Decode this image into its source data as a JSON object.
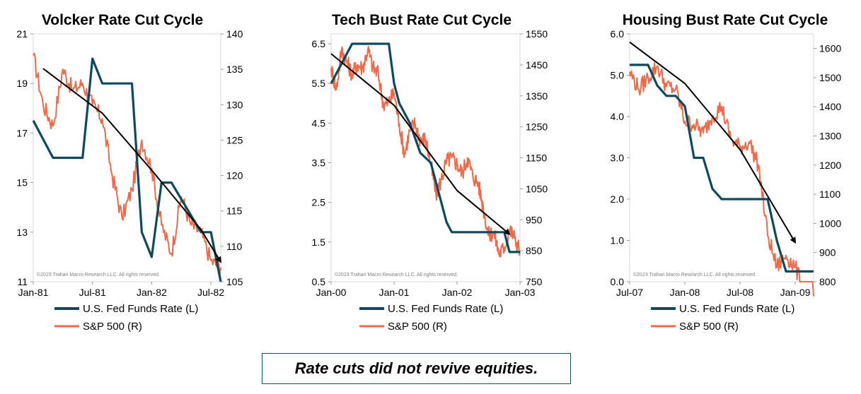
{
  "colors": {
    "fed_funds": "#0e4a5c",
    "sp500": "#ef6a4a",
    "trend": "#000000",
    "frame": "#d9d9d9"
  },
  "caption": "Rate cuts did not revive equities.",
  "chart_data": [
    {
      "type": "line",
      "title": "Volcker Rate Cut Cycle",
      "watermark": "©2023 Trahan Macro Research LLC. All rights reserved.",
      "x_ticks": [
        "Jan-81",
        "Jul-81",
        "Jan-82",
        "Jul-82"
      ],
      "x_range": [
        "Jan-81",
        "Aug-82"
      ],
      "y_left": {
        "range": [
          11,
          21
        ],
        "ticks": [
          "11",
          "13",
          "15",
          "17",
          "19",
          "21"
        ]
      },
      "y_right": {
        "range": [
          105,
          140
        ],
        "ticks": [
          "105",
          "110",
          "115",
          "120",
          "125",
          "130",
          "135",
          "140"
        ]
      },
      "legend": [
        "U.S. Fed Funds Rate (L)",
        "S&P 500 (R)"
      ],
      "series": [
        {
          "name": "U.S. Fed Funds Rate (L)",
          "axis": "left",
          "x": [
            "Jan-81",
            "Mar-81",
            "Jun-81",
            "Jul-81",
            "Aug-81",
            "Oct-81",
            "Nov-81",
            "Dec-81",
            "Jan-82",
            "Feb-82",
            "Mar-82",
            "Jun-82",
            "Jul-82",
            "Aug-82"
          ],
          "values": [
            17.5,
            16,
            16,
            20,
            19,
            19,
            19,
            13,
            12,
            15,
            15,
            13,
            13,
            11
          ]
        },
        {
          "name": "S&P 500 (R)",
          "axis": "right",
          "x": [
            "Jan-81",
            "Feb-81",
            "Mar-81",
            "Apr-81",
            "May-81",
            "Jun-81",
            "Jul-81",
            "Aug-81",
            "Sep-81",
            "Oct-81",
            "Nov-81",
            "Dec-81",
            "Jan-82",
            "Feb-82",
            "Mar-82",
            "Apr-82",
            "May-82",
            "Jun-82",
            "Jul-82",
            "Aug-82"
          ],
          "values": [
            137,
            130,
            127,
            135,
            132,
            133,
            130,
            128,
            120,
            114,
            118,
            125,
            121,
            113,
            109,
            117,
            113,
            112,
            108,
            107
          ]
        },
        {
          "name": "",
          "axis": "left",
          "role": "trend-arrow",
          "x": [
            "Feb-81",
            "Aug-81",
            "Jan-82",
            "Jun-82",
            "Aug-82"
          ],
          "values": [
            19.6,
            17.8,
            15.5,
            13.1,
            11.8
          ]
        }
      ]
    },
    {
      "type": "line",
      "title": "Tech Bust Rate Cut Cycle",
      "watermark": "©2023 Trahan Macro Research LLC. All rights reserved.",
      "x_ticks": [
        "Jan-00",
        "Jan-01",
        "Jan-02",
        "Jan-03"
      ],
      "x_range": [
        "Jan-00",
        "Jan-03"
      ],
      "y_left": {
        "range": [
          0.5,
          6.75
        ],
        "ticks": [
          "0.5",
          "1.5",
          "2.5",
          "3.5",
          "4.5",
          "5.5",
          "6.5"
        ]
      },
      "y_right": {
        "range": [
          750,
          1550
        ],
        "ticks": [
          "750",
          "850",
          "950",
          "1050",
          "1150",
          "1250",
          "1350",
          "1450",
          "1550"
        ]
      },
      "legend": [
        "U.S. Fed Funds Rate (L)",
        "S&P 500 (R)"
      ],
      "series": [
        {
          "name": "U.S. Fed Funds Rate (L)",
          "axis": "left",
          "x": [
            "Jan-00",
            "Feb-00",
            "Mar-00",
            "May-00",
            "Dec-00",
            "Jan-01",
            "Feb-01",
            "Apr-01",
            "Jun-01",
            "Aug-01",
            "Nov-01",
            "Dec-01",
            "Oct-02",
            "Nov-02",
            "Jan-03"
          ],
          "values": [
            5.5,
            5.75,
            6.0,
            6.5,
            6.5,
            5.5,
            5.0,
            4.5,
            3.75,
            3.5,
            2.0,
            1.75,
            1.75,
            1.25,
            1.25
          ]
        },
        {
          "name": "S&P 500 (R)",
          "axis": "right",
          "x": [
            "Jan-00",
            "Feb-00",
            "Mar-00",
            "Apr-00",
            "May-00",
            "Jun-00",
            "Jul-00",
            "Aug-00",
            "Sep-00",
            "Oct-00",
            "Nov-00",
            "Dec-00",
            "Jan-01",
            "Feb-01",
            "Mar-01",
            "Apr-01",
            "May-01",
            "Jun-01",
            "Jul-01",
            "Aug-01",
            "Sep-01",
            "Oct-01",
            "Nov-01",
            "Dec-01",
            "Jan-02",
            "Feb-02",
            "Mar-02",
            "Apr-02",
            "May-02",
            "Jun-02",
            "Jul-02",
            "Aug-02",
            "Sep-02",
            "Oct-02",
            "Nov-02",
            "Dec-02",
            "Jan-03"
          ],
          "values": [
            1440,
            1370,
            1500,
            1460,
            1420,
            1450,
            1440,
            1500,
            1440,
            1420,
            1320,
            1330,
            1360,
            1260,
            1160,
            1240,
            1260,
            1210,
            1210,
            1130,
            1030,
            1080,
            1140,
            1150,
            1130,
            1100,
            1150,
            1090,
            1070,
            990,
            900,
            910,
            840,
            860,
            920,
            890,
            850
          ]
        },
        {
          "name": "",
          "axis": "left",
          "role": "trend-arrow",
          "x": [
            "Jan-00",
            "Jan-01",
            "Jan-02",
            "Nov-02"
          ],
          "values": [
            6.25,
            4.95,
            2.8,
            1.7
          ]
        }
      ]
    },
    {
      "type": "line",
      "title": "Housing Bust Rate Cut Cycle",
      "watermark": "©2023 Trahan Macro Research LLC. All rights reserved.",
      "x_ticks": [
        "Jul-07",
        "Jan-08",
        "Jul-08",
        "Jan-09"
      ],
      "x_range": [
        "Jul-07",
        "Mar-09"
      ],
      "y_left": {
        "range": [
          0,
          6
        ],
        "ticks": [
          "0.0",
          "1.0",
          "2.0",
          "3.0",
          "4.0",
          "5.0",
          "6.0"
        ]
      },
      "y_right": {
        "range": [
          800,
          1650
        ],
        "ticks": [
          "800",
          "900",
          "1000",
          "1100",
          "1200",
          "1300",
          "1400",
          "1500",
          "1600"
        ]
      },
      "legend": [
        "U.S. Fed Funds Rate (L)",
        "S&P 500 (R)"
      ],
      "series": [
        {
          "name": "U.S. Fed Funds Rate (L)",
          "axis": "left",
          "x": [
            "Jul-07",
            "Sep-07",
            "Oct-07",
            "Nov-07",
            "Dec-07",
            "Jan-08",
            "Feb-08",
            "Mar-08",
            "Apr-08",
            "May-08",
            "Oct-08",
            "Nov-08",
            "Dec-08",
            "Mar-09"
          ],
          "values": [
            5.25,
            5.25,
            4.75,
            4.5,
            4.5,
            4.25,
            3.0,
            3.0,
            2.25,
            2.0,
            2.0,
            1.0,
            0.25,
            0.25
          ]
        },
        {
          "name": "S&P 500 (R)",
          "axis": "right",
          "x": [
            "Jul-07",
            "Aug-07",
            "Sep-07",
            "Oct-07",
            "Nov-07",
            "Dec-07",
            "Jan-08",
            "Feb-08",
            "Mar-08",
            "Apr-08",
            "May-08",
            "Jun-08",
            "Jul-08",
            "Aug-08",
            "Sep-08",
            "Oct-08",
            "Nov-08",
            "Dec-08",
            "Jan-09",
            "Feb-09",
            "Mar-09"
          ],
          "values": [
            1520,
            1460,
            1500,
            1540,
            1470,
            1460,
            1350,
            1340,
            1310,
            1370,
            1400,
            1290,
            1260,
            1280,
            1200,
            960,
            850,
            890,
            850,
            760,
            750
          ]
        },
        {
          "name": "",
          "axis": "left",
          "role": "trend-arrow",
          "x": [
            "Jul-07",
            "Jan-08",
            "Jul-08",
            "Jan-09"
          ],
          "values": [
            5.8,
            4.8,
            3.2,
            0.95
          ]
        }
      ]
    }
  ]
}
